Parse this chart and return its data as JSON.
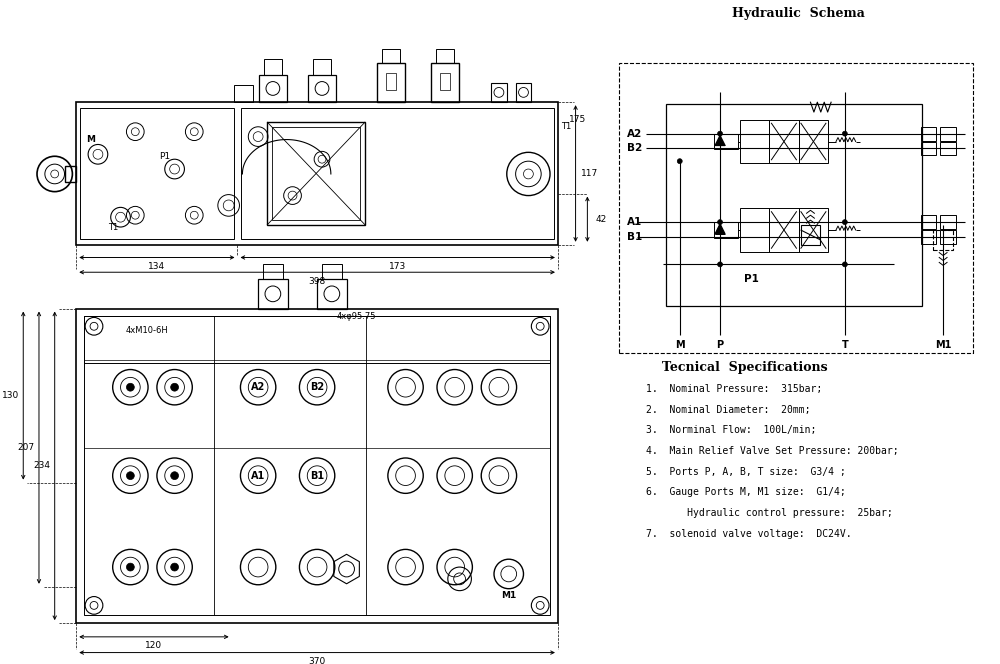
{
  "title": "Hydraulic  Schema",
  "bg_color": "#ffffff",
  "line_color": "#000000",
  "specs_title": "Tecnical  Specifications",
  "specs": [
    "1.  Nominal Pressure:  315bar;",
    "2.  Nominal Diameter:  20mm;",
    "3.  Norminal Flow:  100L/min;",
    "4.  Main Relief Valve Set Pressure: 200bar;",
    "5.  Ports P, A, B, T size:  G3/4 ;",
    "6.  Gauge Ports M, M1 size:  G1/4;",
    "       Hydraulic control pressure:  25bar;",
    "7.  solenoid valve voltage:  DC24V."
  ]
}
